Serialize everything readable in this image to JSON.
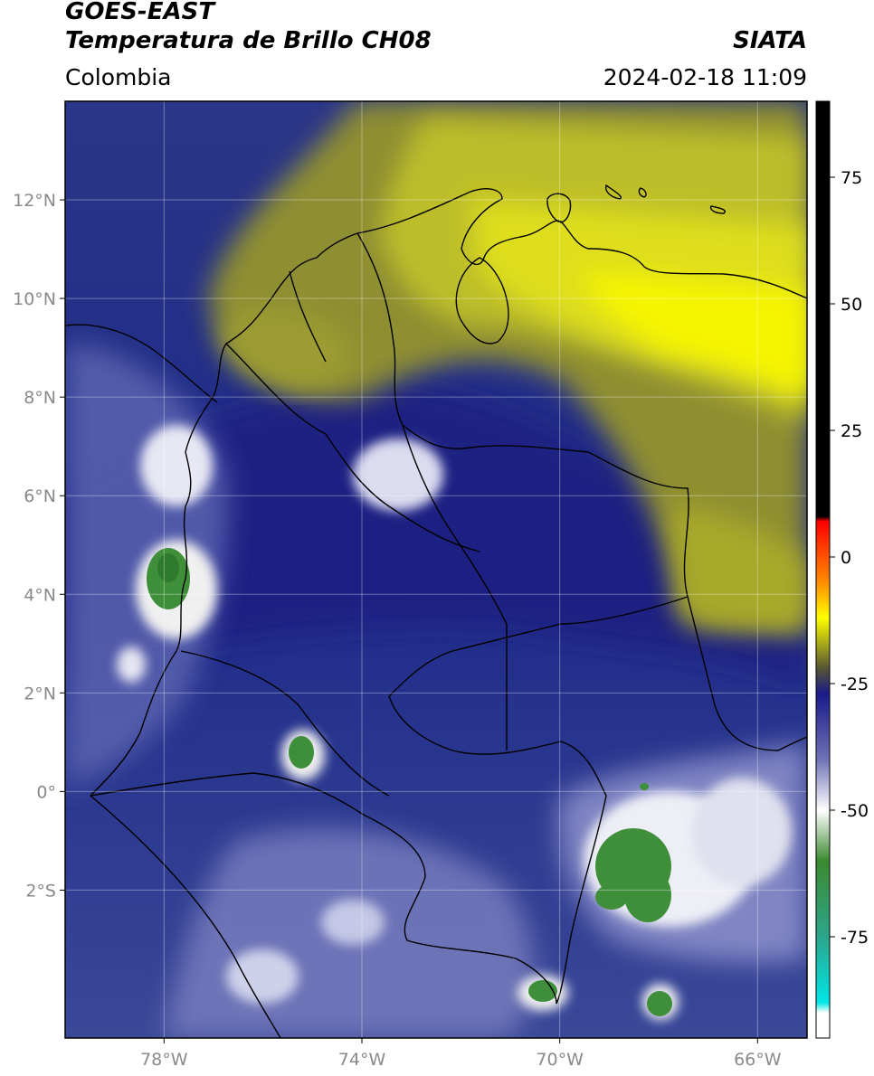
{
  "header": {
    "satellite": "GOES-EAST",
    "product": "Temperatura de Brillo CH08",
    "region": "Colombia",
    "agency": "SIATA",
    "datetime": "2024-02-18 11:09"
  },
  "map": {
    "lon_range": [
      -80,
      -65
    ],
    "lat_range": [
      -5,
      14
    ],
    "lon_ticks": [
      {
        "value": -78,
        "label": "78°W"
      },
      {
        "value": -74,
        "label": "74°W"
      },
      {
        "value": -70,
        "label": "70°W"
      },
      {
        "value": -66,
        "label": "66°W"
      }
    ],
    "lat_ticks": [
      {
        "value": 12,
        "label": "12°N"
      },
      {
        "value": 10,
        "label": "10°N"
      },
      {
        "value": 8,
        "label": "8°N"
      },
      {
        "value": 6,
        "label": "6°N"
      },
      {
        "value": 4,
        "label": "4°N"
      },
      {
        "value": 2,
        "label": "2°N"
      },
      {
        "value": 0,
        "label": "0°"
      },
      {
        "value": -2,
        "label": "2°S"
      }
    ],
    "grid": true,
    "background_color": "#2a3a8c",
    "field_features": [
      {
        "name": "dry-air-north",
        "type": "yellow-band",
        "color": "#c8c42a"
      },
      {
        "name": "cold-cloud-pacific",
        "type": "cloud",
        "color": "#3f8f3a"
      },
      {
        "name": "cold-cloud-amazon",
        "type": "cloud",
        "color": "#3f8f3a"
      }
    ]
  },
  "colorbar": {
    "range": [
      -95,
      90
    ],
    "ticks": [
      {
        "value": 75,
        "label": "75"
      },
      {
        "value": 50,
        "label": "50"
      },
      {
        "value": 25,
        "label": "25"
      },
      {
        "value": 0,
        "label": "0"
      },
      {
        "value": -25,
        "label": "-25"
      },
      {
        "value": -50,
        "label": "-50"
      },
      {
        "value": -75,
        "label": "-75"
      }
    ],
    "stops": [
      {
        "value": 90,
        "color": "#000000"
      },
      {
        "value": 8,
        "color": "#000000"
      },
      {
        "value": 7,
        "color": "#ff0000"
      },
      {
        "value": -5,
        "color": "#ff8c00"
      },
      {
        "value": -12,
        "color": "#ffff00"
      },
      {
        "value": -22,
        "color": "#555533"
      },
      {
        "value": -27,
        "color": "#1a1a8a"
      },
      {
        "value": -40,
        "color": "#6f73b5"
      },
      {
        "value": -50,
        "color": "#ffffff"
      },
      {
        "value": -60,
        "color": "#3c8a30"
      },
      {
        "value": -75,
        "color": "#2ca58c"
      },
      {
        "value": -88,
        "color": "#00e6e6"
      },
      {
        "value": -90,
        "color": "#ffffff"
      },
      {
        "value": -95,
        "color": "#ffffff"
      }
    ]
  }
}
